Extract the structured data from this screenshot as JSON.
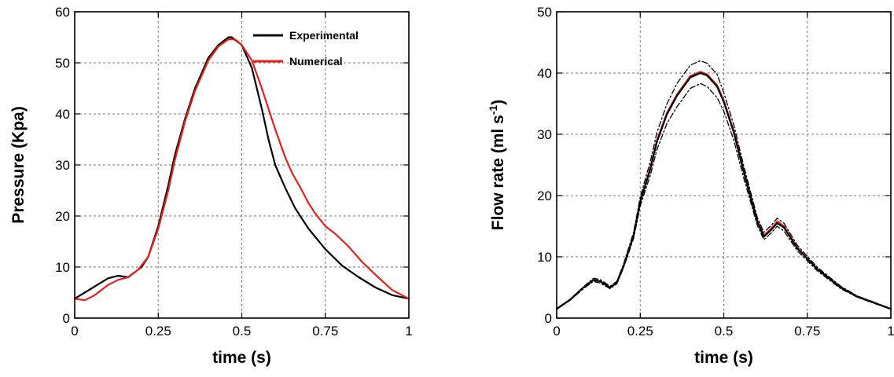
{
  "chart_data": [
    {
      "type": "line",
      "title": "",
      "xlabel": "time (s)",
      "ylabel": "Pressure (Kpa)",
      "xlim": [
        0,
        1
      ],
      "ylim": [
        0,
        60
      ],
      "xticks": [
        "0",
        "0.25",
        "0.5",
        "0.75",
        "1"
      ],
      "yticks": [
        "0",
        "10",
        "20",
        "30",
        "40",
        "50",
        "60"
      ],
      "grid": true,
      "legend": "top-right",
      "series": [
        {
          "name": "Experimental",
          "color": "#000000",
          "x": [
            0,
            0.05,
            0.1,
            0.13,
            0.16,
            0.2,
            0.22,
            0.25,
            0.28,
            0.3,
            0.33,
            0.36,
            0.4,
            0.43,
            0.46,
            0.47,
            0.5,
            0.53,
            0.56,
            0.58,
            0.6,
            0.63,
            0.66,
            0.7,
            0.75,
            0.8,
            0.85,
            0.9,
            0.95,
            1.0
          ],
          "y": [
            3.8,
            5.8,
            7.8,
            8.3,
            8.0,
            10.0,
            12.0,
            18.0,
            26.0,
            32.0,
            39.0,
            45.0,
            51.0,
            53.5,
            55.0,
            55.0,
            53.5,
            49.0,
            41.0,
            35.0,
            30.0,
            25.5,
            21.5,
            17.5,
            13.5,
            10.3,
            8.0,
            6.0,
            4.5,
            3.8
          ]
        },
        {
          "name": "Numerical",
          "color": "#e3201b",
          "x": [
            0,
            0.03,
            0.06,
            0.1,
            0.13,
            0.16,
            0.19,
            0.22,
            0.25,
            0.28,
            0.3,
            0.33,
            0.36,
            0.4,
            0.43,
            0.46,
            0.48,
            0.5,
            0.53,
            0.56,
            0.6,
            0.63,
            0.65,
            0.68,
            0.7,
            0.72,
            0.75,
            0.78,
            0.82,
            0.86,
            0.9,
            0.95,
            1.0
          ],
          "y": [
            3.8,
            3.5,
            4.5,
            6.5,
            7.5,
            8.0,
            9.5,
            12.0,
            17.5,
            25.0,
            31.0,
            38.5,
            44.5,
            50.5,
            53.2,
            54.6,
            54.6,
            53.5,
            50.5,
            45.0,
            37.0,
            31.5,
            28.5,
            25.0,
            22.5,
            20.5,
            18.0,
            16.5,
            14.0,
            11.0,
            8.5,
            5.5,
            3.8
          ]
        }
      ]
    },
    {
      "type": "line",
      "title": "",
      "xlabel": "time (s)",
      "ylabel": "Flow rate (ml s-1)",
      "xlim": [
        0,
        1
      ],
      "ylim": [
        0,
        50
      ],
      "xticks": [
        "0",
        "0.25",
        "0.5",
        "0.75",
        "1"
      ],
      "yticks": [
        "0",
        "10",
        "20",
        "30",
        "40",
        "50"
      ],
      "grid": true,
      "legend": "none",
      "series": [
        {
          "name": "",
          "style": "solid",
          "color": "#e3201b",
          "x": [
            0,
            0.04,
            0.08,
            0.11,
            0.13,
            0.16,
            0.18,
            0.2,
            0.23,
            0.25,
            0.28,
            0.3,
            0.33,
            0.36,
            0.4,
            0.43,
            0.45,
            0.48,
            0.5,
            0.53,
            0.56,
            0.6,
            0.62,
            0.64,
            0.66,
            0.68,
            0.72,
            0.78,
            0.85,
            0.9,
            0.95,
            1.0
          ],
          "y": [
            1.5,
            3.0,
            5.0,
            6.3,
            6.0,
            5.0,
            5.8,
            8.5,
            13.5,
            19.0,
            24.5,
            29.0,
            33.5,
            36.5,
            39.5,
            40.2,
            39.8,
            38.0,
            35.5,
            30.5,
            24.0,
            16.0,
            13.5,
            14.5,
            15.8,
            15.0,
            11.5,
            8.0,
            5.0,
            3.5,
            2.5,
            1.5
          ]
        },
        {
          "name": "",
          "style": "solid",
          "color": "#000000",
          "x": [
            0,
            0.04,
            0.08,
            0.11,
            0.13,
            0.16,
            0.18,
            0.2,
            0.23,
            0.25,
            0.28,
            0.3,
            0.33,
            0.36,
            0.4,
            0.43,
            0.45,
            0.48,
            0.5,
            0.53,
            0.56,
            0.6,
            0.62,
            0.64,
            0.66,
            0.68,
            0.72,
            0.78,
            0.85,
            0.9,
            0.95,
            1.0
          ],
          "y": [
            1.5,
            3.0,
            5.0,
            6.2,
            6.0,
            5.0,
            5.8,
            8.5,
            13.5,
            19.0,
            24.3,
            28.8,
            33.3,
            36.3,
            39.3,
            40.0,
            39.6,
            37.8,
            35.3,
            30.3,
            23.8,
            15.8,
            13.3,
            14.3,
            15.5,
            14.8,
            11.4,
            8.0,
            5.0,
            3.5,
            2.5,
            1.5
          ]
        },
        {
          "name": "",
          "style": "dash-dot",
          "color": "#000000",
          "x": [
            0,
            0.04,
            0.08,
            0.11,
            0.13,
            0.16,
            0.18,
            0.2,
            0.23,
            0.25,
            0.28,
            0.3,
            0.33,
            0.36,
            0.4,
            0.43,
            0.45,
            0.48,
            0.5,
            0.53,
            0.56,
            0.6,
            0.62,
            0.64,
            0.66,
            0.68,
            0.72,
            0.78,
            0.85,
            0.9,
            0.95,
            1.0
          ],
          "y": [
            1.5,
            3.0,
            5.1,
            6.5,
            6.3,
            5.2,
            6.0,
            8.8,
            14.0,
            19.8,
            25.5,
            30.3,
            35.0,
            38.3,
            41.3,
            42.0,
            41.6,
            39.8,
            36.8,
            31.5,
            24.8,
            16.5,
            14.0,
            15.0,
            16.3,
            15.5,
            11.9,
            8.3,
            5.2,
            3.6,
            2.6,
            1.5
          ]
        },
        {
          "name": "",
          "style": "dash-dot",
          "color": "#000000",
          "x": [
            0,
            0.04,
            0.08,
            0.11,
            0.13,
            0.16,
            0.18,
            0.2,
            0.23,
            0.25,
            0.28,
            0.3,
            0.33,
            0.36,
            0.4,
            0.43,
            0.45,
            0.48,
            0.5,
            0.53,
            0.56,
            0.6,
            0.62,
            0.64,
            0.66,
            0.68,
            0.72,
            0.78,
            0.85,
            0.9,
            0.95,
            1.0
          ],
          "y": [
            1.5,
            2.9,
            4.8,
            6.0,
            5.7,
            4.8,
            5.6,
            8.2,
            13.0,
            18.3,
            23.3,
            27.5,
            31.8,
            34.5,
            37.5,
            38.3,
            37.8,
            36.0,
            33.8,
            29.0,
            22.8,
            15.2,
            12.8,
            13.8,
            15.0,
            14.2,
            11.0,
            7.7,
            4.8,
            3.4,
            2.4,
            1.5
          ]
        }
      ]
    }
  ]
}
